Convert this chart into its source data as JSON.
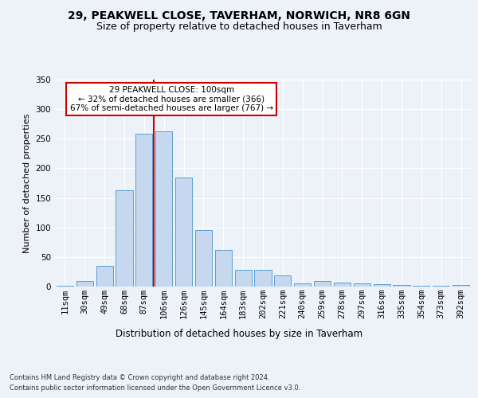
{
  "title1": "29, PEAKWELL CLOSE, TAVERHAM, NORWICH, NR8 6GN",
  "title2": "Size of property relative to detached houses in Taverham",
  "xlabel": "Distribution of detached houses by size in Taverham",
  "ylabel": "Number of detached properties",
  "categories": [
    "11sqm",
    "30sqm",
    "49sqm",
    "68sqm",
    "87sqm",
    "106sqm",
    "126sqm",
    "145sqm",
    "164sqm",
    "183sqm",
    "202sqm",
    "221sqm",
    "240sqm",
    "259sqm",
    "278sqm",
    "297sqm",
    "316sqm",
    "335sqm",
    "354sqm",
    "373sqm",
    "392sqm"
  ],
  "values": [
    2,
    9,
    35,
    163,
    258,
    262,
    185,
    96,
    62,
    28,
    28,
    19,
    6,
    10,
    7,
    6,
    4,
    3,
    2,
    1,
    3
  ],
  "bar_color": "#c5d8f0",
  "bar_edge_color": "#5a9fd4",
  "vline_color": "#cc0000",
  "annotation_text": "29 PEAKWELL CLOSE: 100sqm\n← 32% of detached houses are smaller (366)\n67% of semi-detached houses are larger (767) →",
  "annotation_box_color": "#ffffff",
  "annotation_box_edge": "#cc0000",
  "footer1": "Contains HM Land Registry data © Crown copyright and database right 2024.",
  "footer2": "Contains public sector information licensed under the Open Government Licence v3.0.",
  "ylim": [
    0,
    350
  ],
  "yticks": [
    0,
    50,
    100,
    150,
    200,
    250,
    300,
    350
  ],
  "bg_color": "#edf2f9",
  "plot_bg_color": "#edf2f9",
  "title1_fontsize": 10,
  "title2_fontsize": 9,
  "xlabel_fontsize": 8.5,
  "ylabel_fontsize": 8,
  "tick_fontsize": 7.5,
  "annotation_fontsize": 7.5,
  "footer_fontsize": 6,
  "vline_x": 4.5
}
